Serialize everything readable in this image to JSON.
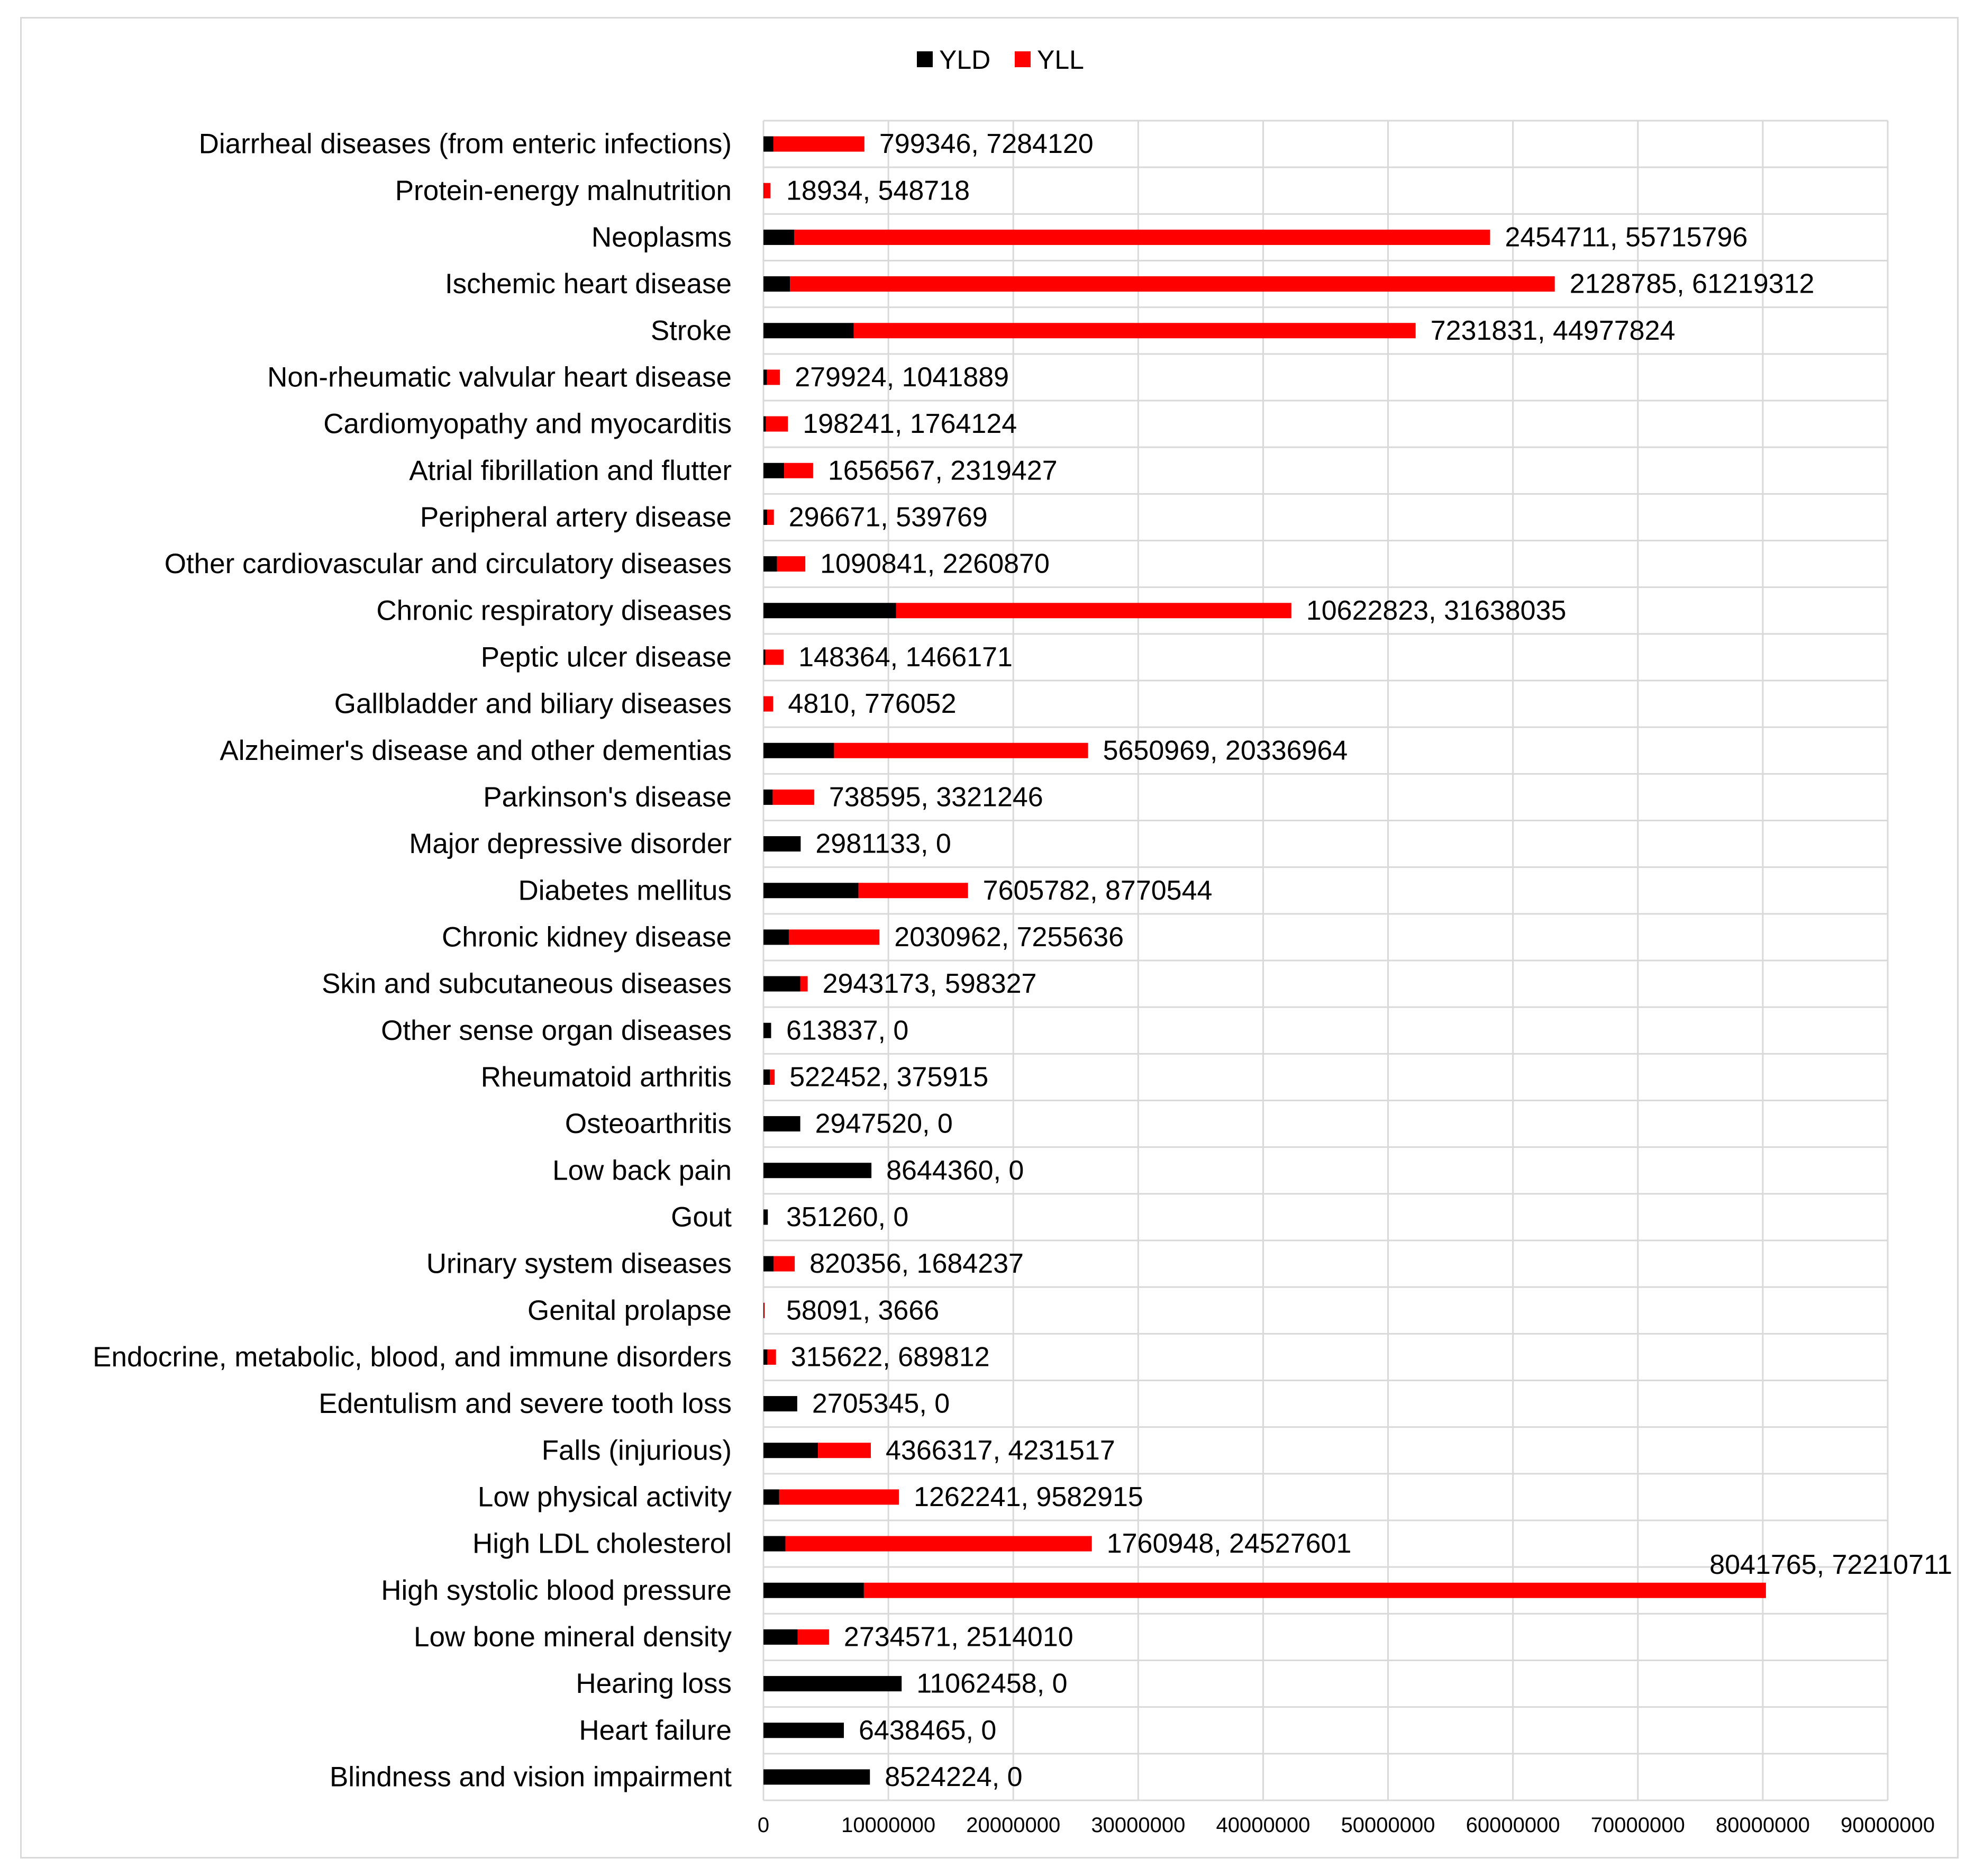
{
  "chart_data": {
    "type": "bar",
    "orientation": "horizontal",
    "stacked": true,
    "title": "",
    "xlabel": "",
    "ylabel": "",
    "xlim": [
      0,
      90000000
    ],
    "x_ticks": [
      "0",
      "10000000",
      "20000000",
      "30000000",
      "40000000",
      "50000000",
      "60000000",
      "70000000",
      "80000000",
      "90000000"
    ],
    "grid": true,
    "legend_position": "top-center",
    "series": [
      {
        "name": "YLD",
        "color": "#000000"
      },
      {
        "name": "YLL",
        "color": "#ff0000"
      }
    ],
    "categories": [
      {
        "label": "Diarrheal diseases (from enteric infections)",
        "yld": 799346,
        "yll": 7284120,
        "data_label": "799346, 7284120"
      },
      {
        "label": "Protein-energy malnutrition",
        "yld": 18934,
        "yll": 548718,
        "data_label": "18934, 548718"
      },
      {
        "label": "Neoplasms",
        "yld": 2454711,
        "yll": 55715796,
        "data_label": "2454711, 55715796"
      },
      {
        "label": "Ischemic heart disease",
        "yld": 2128785,
        "yll": 61219312,
        "data_label": "2128785, 61219312"
      },
      {
        "label": "Stroke",
        "yld": 7231831,
        "yll": 44977824,
        "data_label": "7231831, 44977824"
      },
      {
        "label": "Non-rheumatic valvular heart disease",
        "yld": 279924,
        "yll": 1041889,
        "data_label": "279924, 1041889"
      },
      {
        "label": "Cardiomyopathy and myocarditis",
        "yld": 198241,
        "yll": 1764124,
        "data_label": "198241, 1764124"
      },
      {
        "label": "Atrial fibrillation and flutter",
        "yld": 1656567,
        "yll": 2319427,
        "data_label": "1656567, 2319427"
      },
      {
        "label": "Peripheral artery disease",
        "yld": 296671,
        "yll": 539769,
        "data_label": "296671, 539769"
      },
      {
        "label": "Other cardiovascular and circulatory diseases",
        "yld": 1090841,
        "yll": 2260870,
        "data_label": "1090841, 2260870"
      },
      {
        "label": "Chronic respiratory diseases",
        "yld": 10622823,
        "yll": 31638035,
        "data_label": "10622823, 31638035"
      },
      {
        "label": "Peptic ulcer disease",
        "yld": 148364,
        "yll": 1466171,
        "data_label": "148364, 1466171"
      },
      {
        "label": "Gallbladder and biliary diseases",
        "yld": 4810,
        "yll": 776052,
        "data_label": "4810, 776052"
      },
      {
        "label": "Alzheimer's disease and other dementias",
        "yld": 5650969,
        "yll": 20336964,
        "data_label": "5650969, 20336964"
      },
      {
        "label": "Parkinson's disease",
        "yld": 738595,
        "yll": 3321246,
        "data_label": "738595, 3321246"
      },
      {
        "label": "Major depressive disorder",
        "yld": 2981133,
        "yll": 0,
        "data_label": "2981133, 0"
      },
      {
        "label": "Diabetes mellitus",
        "yld": 7605782,
        "yll": 8770544,
        "data_label": "7605782, 8770544"
      },
      {
        "label": "Chronic kidney disease",
        "yld": 2030962,
        "yll": 7255636,
        "data_label": "2030962, 7255636"
      },
      {
        "label": "Skin and subcutaneous diseases",
        "yld": 2943173,
        "yll": 598327,
        "data_label": "2943173, 598327"
      },
      {
        "label": "Other sense organ diseases",
        "yld": 613837,
        "yll": 0,
        "data_label": "613837, 0"
      },
      {
        "label": "Rheumatoid arthritis",
        "yld": 522452,
        "yll": 375915,
        "data_label": "522452, 375915"
      },
      {
        "label": "Osteoarthritis",
        "yld": 2947520,
        "yll": 0,
        "data_label": "2947520, 0"
      },
      {
        "label": "Low back pain",
        "yld": 8644360,
        "yll": 0,
        "data_label": "8644360, 0"
      },
      {
        "label": "Gout",
        "yld": 351260,
        "yll": 0,
        "data_label": "351260, 0"
      },
      {
        "label": "Urinary system diseases",
        "yld": 820356,
        "yll": 1684237,
        "data_label": "820356, 1684237"
      },
      {
        "label": "Genital prolapse",
        "yld": 58091,
        "yll": 3666,
        "data_label": "58091, 3666"
      },
      {
        "label": "Endocrine, metabolic, blood, and immune disorders",
        "yld": 315622,
        "yll": 689812,
        "data_label": "315622, 689812"
      },
      {
        "label": "Edentulism and severe tooth loss",
        "yld": 2705345,
        "yll": 0,
        "data_label": "2705345, 0"
      },
      {
        "label": "Falls (injurious)",
        "yld": 4366317,
        "yll": 4231517,
        "data_label": "4366317, 4231517"
      },
      {
        "label": "Low physical activity",
        "yld": 1262241,
        "yll": 9582915,
        "data_label": "1262241, 9582915"
      },
      {
        "label": "High LDL cholesterol",
        "yld": 1760948,
        "yll": 24527601,
        "data_label": "1760948, 24527601"
      },
      {
        "label": "High systolic blood pressure",
        "yld": 8041765,
        "yll": 72210711,
        "data_label": "8041765, 72210711"
      },
      {
        "label": "Low bone mineral density",
        "yld": 2734571,
        "yll": 2514010,
        "data_label": "2734571, 2514010"
      },
      {
        "label": "Hearing loss",
        "yld": 11062458,
        "yll": 0,
        "data_label": "11062458, 0"
      },
      {
        "label": "Heart failure",
        "yld": 6438465,
        "yll": 0,
        "data_label": "6438465, 0"
      },
      {
        "label": "Blindness and vision impairment",
        "yld": 8524224,
        "yll": 0,
        "data_label": "8524224, 0"
      }
    ]
  }
}
